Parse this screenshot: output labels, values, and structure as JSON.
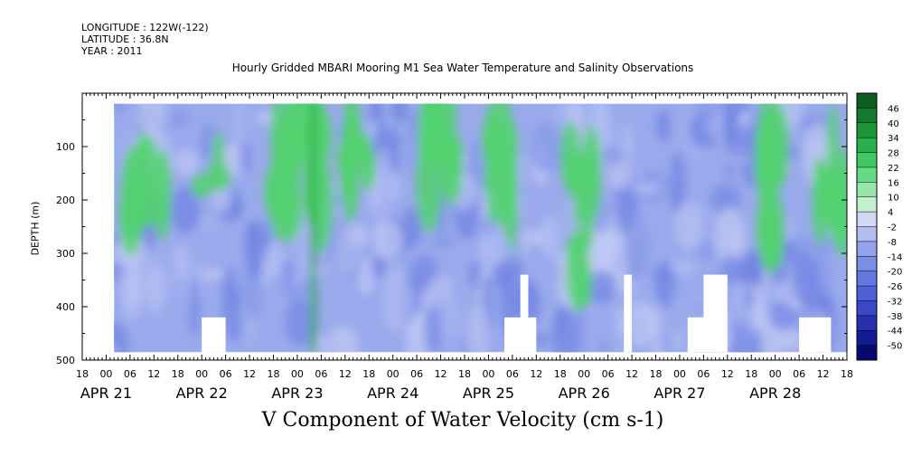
{
  "header": {
    "longitude": "LONGITUDE : 122W(-122)",
    "latitude": "LATITUDE : 36.8N",
    "year": "YEAR : 2011"
  },
  "chart_data": {
    "type": "heatmap",
    "title": "Hourly Gridded MBARI Mooring M1 Sea Water Temperature and Salinity Observations",
    "xlabel": "V Component of Water Velocity (cm s-1)",
    "ylabel": "DEPTH (m)",
    "x_hour_ticks": [
      "18",
      "00",
      "06",
      "12",
      "18",
      "00",
      "06",
      "12",
      "18",
      "00",
      "06",
      "12",
      "18",
      "00",
      "06",
      "12",
      "18",
      "00",
      "06",
      "12",
      "18",
      "00",
      "06",
      "12",
      "18",
      "00",
      "06",
      "12",
      "18",
      "00",
      "06",
      "12",
      "18"
    ],
    "x_date_labels": [
      "APR 21",
      "APR 22",
      "APR 23",
      "APR 24",
      "APR 25",
      "APR 26",
      "APR 27",
      "APR 28"
    ],
    "y_ticks": [
      "100",
      "200",
      "300",
      "400",
      "500"
    ],
    "ylim": [
      500,
      0
    ],
    "colorbar": {
      "labels": [
        "46",
        "40",
        "34",
        "28",
        "22",
        "16",
        "10",
        "4",
        "-2",
        "-8",
        "-14",
        "-20",
        "-26",
        "-32",
        "-38",
        "-44",
        "-50"
      ],
      "colors": [
        "#0b5e21",
        "#127a2c",
        "#1b9639",
        "#28b04a",
        "#3fc863",
        "#66d985",
        "#98e6a9",
        "#c4f0cb",
        "#d2d8f4",
        "#b3bdf0",
        "#94a3eb",
        "#7a8ee6",
        "#6378e0",
        "#4d60d6",
        "#3a48c8",
        "#2631b2",
        "#141c95",
        "#060a6e"
      ]
    },
    "colors": {
      "background_mean": "#9aaaec",
      "positive": "#52d270",
      "strong_positive": "#14a83a",
      "missing": "#ffffff"
    },
    "positive_bands": [
      {
        "start": "APR 21 06",
        "end": "APR 22 06",
        "label": "200"
      },
      {
        "start": "APR 22 18",
        "end": "APR 23 00",
        "label": "200"
      },
      {
        "start": "APR 23 03",
        "end": "APR 23 06",
        "label": "200"
      },
      {
        "start": "APR 23 12",
        "end": "APR 23 20",
        "label": "150"
      },
      {
        "start": "APR 24 08",
        "end": "APR 24 16",
        "label": "150"
      },
      {
        "start": "APR 25 00",
        "end": "APR 25 06",
        "label": "200"
      },
      {
        "start": "APR 25 20",
        "end": "APR 26 02",
        "label": "350"
      },
      {
        "start": "APR 27 20",
        "end": "APR 28 02",
        "label": "250"
      },
      {
        "start": "APR 28 10",
        "end": "APR 28 18",
        "label": "200"
      }
    ]
  }
}
